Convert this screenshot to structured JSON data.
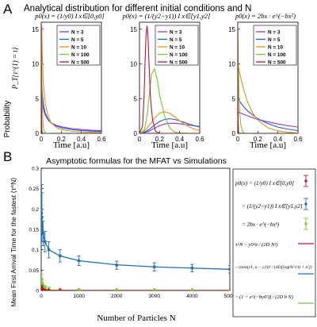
{
  "panel_a": {
    "letter": "A",
    "title": "Analytical distribution for different initial conditions and N",
    "ylabel_text": "Probability",
    "ylabel_math": "P_T{τ^(1) = t}",
    "xlabel": "Time [a.u]",
    "subplot_titles": [
      "p0(x) = (1/y0) I x∈[0,y0]",
      "p0(x) = (1/(y2−y1)) I x∈[y1,y2]",
      "p0(x) = 2bx · e^(−bx²)"
    ]
  },
  "panel_b": {
    "letter": "B",
    "title": "Asymptotic formulas for the MFAT vs Simulations",
    "ylabel": "Mean First Arrival Time for the fastest ⟨τ^N⟩",
    "xlabel": "Number of Particles N",
    "legend_entries": [
      "p0(x) = (1/y0) I x∈[0,y0]",
      "= (1/(y2−y1)) I x∈[y1,y2]",
      "= 2bx · e^(−bx²)",
      "τ^N ~ y0²π / (2D N²)",
      "~ (min(y1, a − y2))² / (4D[log(N/√π) + α'])",
      "~ (1 − e^(−by0²)) / (2D b N)"
    ]
  },
  "colors": {
    "N3": "#9a2fd0",
    "N5": "#1a5fd8",
    "N10": "#e8901a",
    "N100": "#6fcc2c",
    "N500": "#c8102e",
    "sim_blue": "#1f6fbf",
    "sim_green": "#77cc33",
    "sim_red": "#c8102e"
  },
  "chart_data": [
    {
      "type": "line",
      "title": "p0(x) = (1/y0) I x∈[0,y0]",
      "xlabel": "Time [a.u]",
      "ylabel": "Probability",
      "xlim": [
        0,
        0.6
      ],
      "ylim": [
        0,
        16
      ],
      "xticks": [
        "0",
        "0.2",
        "0.4",
        "0.6"
      ],
      "yticks": [
        "0",
        "5",
        "10",
        "15"
      ],
      "legend": [
        "N = 3",
        "N = 5",
        "N = 10",
        "N = 100",
        "N = 500"
      ],
      "series": [
        {
          "name": "N = 3",
          "color": "#9a2fd0",
          "x": [
            0.005,
            0.01,
            0.02,
            0.04,
            0.07,
            0.1,
            0.15,
            0.2,
            0.3,
            0.4,
            0.5,
            0.6
          ],
          "y": [
            6.5,
            5.0,
            3.6,
            2.6,
            1.9,
            1.5,
            1.15,
            0.95,
            0.7,
            0.55,
            0.45,
            0.4
          ]
        },
        {
          "name": "N = 5",
          "color": "#1a5fd8",
          "x": [
            0.005,
            0.01,
            0.02,
            0.04,
            0.07,
            0.1,
            0.15,
            0.2,
            0.3,
            0.4,
            0.5,
            0.6
          ],
          "y": [
            7.5,
            6.0,
            4.3,
            2.9,
            2.0,
            1.5,
            1.05,
            0.8,
            0.55,
            0.4,
            0.32,
            0.27
          ]
        },
        {
          "name": "N = 10",
          "color": "#e8901a",
          "x": [
            0.005,
            0.01,
            0.02,
            0.04,
            0.07,
            0.1,
            0.15,
            0.2,
            0.3,
            0.4,
            0.5,
            0.6
          ],
          "y": [
            15.5,
            11.5,
            7.5,
            4.3,
            2.4,
            1.5,
            0.85,
            0.55,
            0.3,
            0.2,
            0.15,
            0.12
          ]
        },
        {
          "name": "N = 100",
          "color": "#6fcc2c",
          "x": [
            0.0,
            0.002,
            0.005,
            0.008,
            0.012,
            0.02,
            0.03,
            0.05,
            0.08
          ],
          "y": [
            16,
            14,
            9.0,
            5.5,
            3.0,
            1.0,
            0.3,
            0.05,
            0.0
          ]
        },
        {
          "name": "N = 500",
          "color": "#c8102e",
          "x": [
            0.0,
            0.001,
            0.002,
            0.004,
            0.006,
            0.01
          ],
          "y": [
            16,
            12,
            6,
            2,
            0.5,
            0.0
          ]
        }
      ]
    },
    {
      "type": "line",
      "title": "p0(x) = (1/(y2−y1)) I x∈[y1,y2]",
      "xlabel": "Time [a.u]",
      "xlim": [
        0,
        0.6
      ],
      "ylim": [
        0,
        16
      ],
      "xticks": [
        "0",
        "0.2",
        "0.4",
        "0.6"
      ],
      "yticks": [
        "0",
        "5",
        "10",
        "15"
      ],
      "legend": [
        "N = 3",
        "N = 5",
        "N = 10",
        "N = 100",
        "N = 500"
      ],
      "series": [
        {
          "name": "N = 3",
          "color": "#9a2fd0",
          "x": [
            0.0,
            0.05,
            0.1,
            0.15,
            0.2,
            0.25,
            0.3,
            0.35,
            0.4,
            0.45,
            0.5,
            0.55,
            0.6
          ],
          "y": [
            0.0,
            0.1,
            0.35,
            0.75,
            1.1,
            1.35,
            1.45,
            1.45,
            1.38,
            1.28,
            1.18,
            1.08,
            1.0
          ]
        },
        {
          "name": "N = 5",
          "color": "#1a5fd8",
          "x": [
            0.0,
            0.05,
            0.1,
            0.15,
            0.2,
            0.25,
            0.3,
            0.35,
            0.4,
            0.45,
            0.5,
            0.55,
            0.6
          ],
          "y": [
            0.0,
            0.15,
            0.6,
            1.2,
            1.7,
            2.0,
            2.1,
            2.0,
            1.8,
            1.55,
            1.3,
            1.1,
            0.9
          ]
        },
        {
          "name": "N = 10",
          "color": "#e8901a",
          "x": [
            0.0,
            0.05,
            0.1,
            0.15,
            0.2,
            0.25,
            0.3,
            0.35,
            0.4,
            0.45,
            0.5,
            0.55,
            0.6
          ],
          "y": [
            0.0,
            0.3,
            1.2,
            2.2,
            2.9,
            3.1,
            2.9,
            2.4,
            1.8,
            1.3,
            0.9,
            0.6,
            0.4
          ]
        },
        {
          "name": "N = 100",
          "color": "#6fcc2c",
          "x": [
            0.0,
            0.05,
            0.08,
            0.1,
            0.12,
            0.15,
            0.18,
            0.2,
            0.25,
            0.3,
            0.35,
            0.4,
            0.5,
            0.6
          ],
          "y": [
            0.0,
            0.5,
            3.0,
            6.0,
            8.5,
            9.3,
            7.5,
            5.5,
            2.5,
            0.8,
            0.2,
            0.05,
            0.0,
            0.0
          ]
        },
        {
          "name": "N = 500",
          "color": "#c8102e",
          "x": [
            0.0,
            0.03,
            0.045,
            0.055,
            0.065,
            0.075,
            0.085,
            0.095,
            0.11,
            0.13,
            0.16,
            0.2,
            0.6
          ],
          "y": [
            0.0,
            1.0,
            5.0,
            10.0,
            14.0,
            15.5,
            14.0,
            10.0,
            5.0,
            2.0,
            0.3,
            0.0,
            0.0
          ]
        }
      ]
    },
    {
      "type": "line",
      "title": "p0(x) = 2bx · e^(−bx²)",
      "xlabel": "Time [a.u]",
      "xlim": [
        0,
        0.6
      ],
      "ylim": [
        0,
        16
      ],
      "xticks": [
        "0",
        "0.2",
        "0.4",
        "0.6"
      ],
      "yticks": [
        "0",
        "5",
        "10",
        "15"
      ],
      "legend": [
        "N = 3",
        "N = 5",
        "N = 10",
        "N = 100",
        "N = 500"
      ],
      "series": [
        {
          "name": "N = 3",
          "color": "#9a2fd0",
          "x": [
            0.0,
            0.05,
            0.1,
            0.2,
            0.3,
            0.4,
            0.5,
            0.6
          ],
          "y": [
            3.1,
            2.8,
            2.5,
            2.0,
            1.65,
            1.35,
            1.1,
            0.9
          ]
        },
        {
          "name": "N = 5",
          "color": "#1a5fd8",
          "x": [
            0.0,
            0.05,
            0.1,
            0.2,
            0.3,
            0.4,
            0.5,
            0.6
          ],
          "y": [
            5.0,
            4.0,
            3.2,
            2.1,
            1.4,
            0.9,
            0.6,
            0.4
          ]
        },
        {
          "name": "N = 10",
          "color": "#e8901a",
          "x": [
            0.0,
            0.03,
            0.06,
            0.1,
            0.15,
            0.2,
            0.3,
            0.4,
            0.5,
            0.6
          ],
          "y": [
            10.0,
            8.0,
            6.2,
            4.4,
            2.9,
            1.9,
            0.8,
            0.35,
            0.15,
            0.06
          ]
        },
        {
          "name": "N = 100",
          "color": "#6fcc2c",
          "x": [
            0.0,
            0.003,
            0.006,
            0.01,
            0.02,
            0.03,
            0.05,
            0.08
          ],
          "y": [
            15.5,
            13.0,
            10.0,
            7.0,
            3.0,
            1.2,
            0.2,
            0.0
          ]
        },
        {
          "name": "N = 500",
          "color": "#c8102e",
          "x": [
            0.0,
            0.001,
            0.002,
            0.004,
            0.008
          ],
          "y": [
            16,
            12,
            7,
            2,
            0.0
          ]
        }
      ]
    },
    {
      "type": "line",
      "title": "Asymptotic formulas for the MFAT vs Simulations",
      "xlabel": "Number of Particles N",
      "ylabel": "Mean First Arrival Time for the fastest ⟨τ^N⟩",
      "xlim": [
        0,
        5000
      ],
      "ylim": [
        0,
        0.3
      ],
      "xticks": [
        "0",
        "1000",
        "2000",
        "3000",
        "4000",
        "5000"
      ],
      "yticks": [
        "0",
        "0.05",
        "0.1",
        "0.15",
        "0.2",
        "0.25",
        "0.3"
      ],
      "series": [
        {
          "name": "= (1/(y2−y1)) I x∈[y1,y2]",
          "color": "#1f6fbf",
          "kind": "simulation",
          "x": [
            10,
            20,
            50,
            100,
            200,
            500,
            1000,
            2000,
            3000,
            4000,
            5000
          ],
          "y": [
            0.19,
            0.18,
            0.14,
            0.12,
            0.1,
            0.085,
            0.073,
            0.062,
            0.058,
            0.055,
            0.052
          ],
          "err": [
            0.07,
            0.06,
            0.03,
            0.025,
            0.02,
            0.015,
            0.012,
            0.01,
            0.01,
            0.009,
            0.009
          ]
        },
        {
          "name": "= 2bx · e^(−bx²)",
          "color": "#77cc33",
          "kind": "simulation",
          "x": [
            10,
            20,
            50,
            100,
            200,
            500,
            1000,
            2000,
            3000,
            4000,
            5000
          ],
          "y": [
            0.028,
            0.02,
            0.012,
            0.008,
            0.005,
            0.003,
            0.002,
            0.0015,
            0.0012,
            0.001,
            0.001
          ],
          "err": [
            0.012,
            0.008,
            0.005,
            0.004,
            0.003,
            0.002,
            0.001,
            0.001,
            0.001,
            0.001,
            0.001
          ]
        },
        {
          "name": "p0(x) = (1/y0) I x∈[0,y0]",
          "color": "#c8102e",
          "kind": "simulation",
          "x": [
            10,
            20,
            50,
            100,
            200,
            500
          ],
          "y": [
            0.008,
            0.004,
            0.002,
            0.001,
            0.0005,
            0.0002
          ],
          "err": [
            0.004,
            0.002,
            0.001,
            0.0005,
            0.0003,
            0.0001
          ]
        },
        {
          "name": "~ (min(y1, a − y2))² / (4D[log(N/√π) + α'])",
          "color": "#1f6fbf",
          "kind": "asymptotic",
          "x": [
            10,
            50,
            100,
            200,
            500,
            1000,
            2000,
            3000,
            4000,
            5000
          ],
          "y": [
            0.19,
            0.14,
            0.12,
            0.1,
            0.085,
            0.073,
            0.063,
            0.058,
            0.055,
            0.052
          ]
        },
        {
          "name": "~ (1 − e^(−by0²)) / (2D b N)",
          "color": "#77cc33",
          "kind": "asymptotic",
          "x": [
            10,
            50,
            100,
            200,
            500,
            1000,
            5000
          ],
          "y": [
            0.02,
            0.006,
            0.003,
            0.0015,
            0.0006,
            0.0003,
            0.0001
          ]
        },
        {
          "name": "τ^N ~ y0²π / (2D N²)",
          "color": "#c8102e",
          "kind": "asymptotic",
          "x": [
            10,
            30,
            60,
            100,
            300,
            5000
          ],
          "y": [
            0.008,
            0.002,
            0.0008,
            0.0003,
            5e-05,
            0.0
          ]
        }
      ]
    }
  ]
}
